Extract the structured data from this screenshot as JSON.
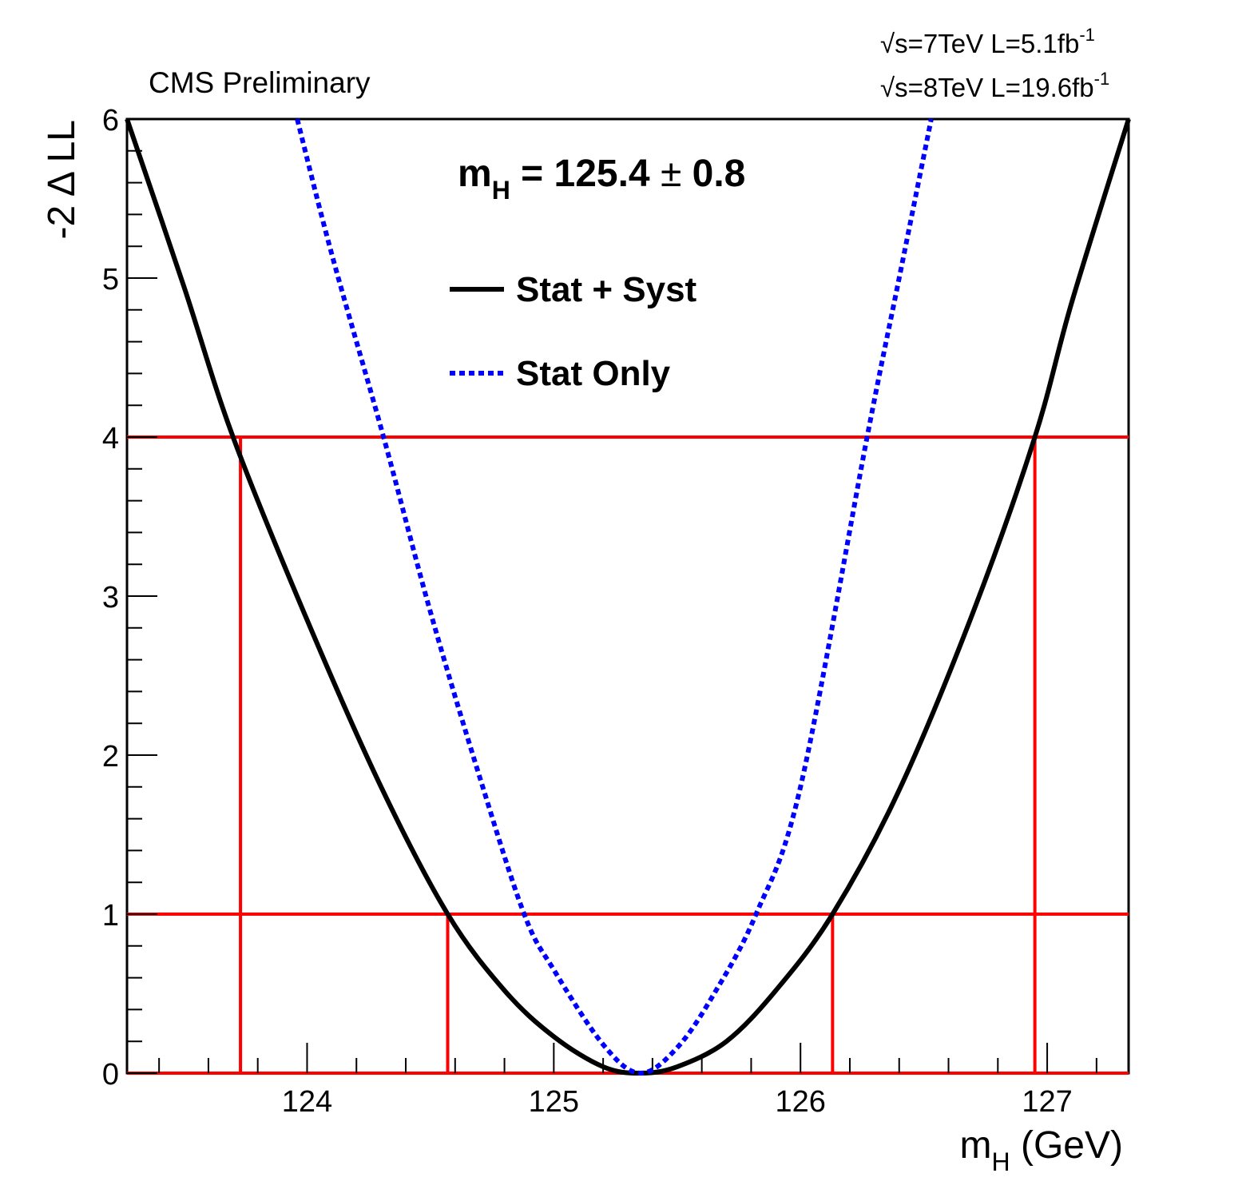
{
  "chart_data": {
    "type": "line",
    "header_left": "CMS Preliminary",
    "lumi_lines": [
      {
        "energy": "=7TeV L=5.1fb",
        "exp": "-1"
      },
      {
        "energy": "=8TeV L=19.6fb",
        "exp": "-1"
      }
    ],
    "sqrt_symbol": "√",
    "sqrt_var": "s",
    "result": {
      "prefix": "m",
      "sub": "H",
      "value": " = 125.4 ",
      "pm": "±",
      "err": " 0.8"
    },
    "ylabel": "-2 Δ LL",
    "xlabel": {
      "prefix": "m",
      "sub": "H",
      "suffix": " (GeV)"
    },
    "xlim": [
      123.27,
      127.33
    ],
    "ylim": [
      0,
      6
    ],
    "x_ticks": [
      124,
      125,
      126,
      127
    ],
    "x_tick_labels": [
      "124",
      "125",
      "126",
      "127"
    ],
    "y_ticks": [
      0,
      1,
      2,
      3,
      4,
      5,
      6
    ],
    "y_tick_labels": [
      "0",
      "1",
      "2",
      "3",
      "4",
      "5",
      "6"
    ],
    "colors": {
      "stat_syst": "#000000",
      "stat_only": "#0000ff",
      "intervals": "#ff0000",
      "frame": "#000000"
    },
    "series": [
      {
        "name": "Stat + Syst",
        "style": "solid",
        "x": [
          123.27,
          123.5,
          123.7,
          124.0,
          124.3,
          124.57,
          124.8,
          125.0,
          125.2,
          125.35,
          125.5,
          125.7,
          125.9,
          126.13,
          126.4,
          126.7,
          126.95,
          127.1,
          127.33
        ],
        "y": [
          6.0,
          4.95,
          4.0,
          2.85,
          1.8,
          1.0,
          0.52,
          0.23,
          0.04,
          0.0,
          0.04,
          0.2,
          0.52,
          1.0,
          1.78,
          2.9,
          4.0,
          4.85,
          6.0
        ]
      },
      {
        "name": "Stat Only",
        "style": "dotted",
        "x": [
          123.96,
          124.1,
          124.31,
          124.5,
          124.7,
          124.88,
          125.0,
          125.2,
          125.35,
          125.5,
          125.65,
          125.82,
          126.0,
          126.27,
          126.4,
          126.53
        ],
        "y": [
          6.0,
          5.15,
          4.0,
          2.9,
          1.86,
          1.0,
          0.65,
          0.18,
          0.0,
          0.16,
          0.5,
          1.0,
          1.8,
          4.0,
          5.0,
          6.0
        ]
      }
    ],
    "intervals": [
      {
        "level": 1,
        "low": 124.57,
        "high": 126.13
      },
      {
        "level": 4,
        "low": 123.73,
        "high": 126.95
      }
    ],
    "legend": [
      {
        "label": "Stat + Syst",
        "style": "solid"
      },
      {
        "label": "Stat Only",
        "style": "dotted"
      }
    ],
    "legend_position": "top-center"
  }
}
